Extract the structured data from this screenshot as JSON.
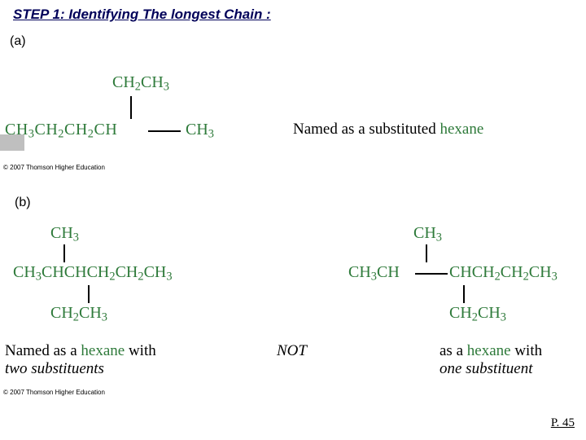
{
  "title": "STEP 1: Identifying The longest Chain :",
  "labels": {
    "a": "(a)",
    "b": "(b)"
  },
  "sectionA": {
    "branch": "CH2CH3",
    "mainLeft": "CH3CH2CH2CH",
    "mainRight": "CH3",
    "desc_prefix": "Named as a substituted ",
    "desc_hex": "hexane",
    "copyright": "© 2007 Thomson Higher Education"
  },
  "sectionB": {
    "left": {
      "top": "CH3",
      "main": "CH3CHCHCH2CH2CH3",
      "bot": "CH2CH3",
      "desc1_prefix": "Named as a ",
      "desc1_hex": "hexane",
      "desc1_suffix": " with",
      "desc2": "two substituents"
    },
    "not": "NOT",
    "right": {
      "top": "CH3",
      "mainLeft": "CH3CH",
      "mainRight": "CHCH2CH2CH3",
      "bot": "CH2CH3",
      "desc1_prefix": "as a ",
      "desc1_hex": "hexane",
      "desc1_suffix": " with",
      "desc2": "one substituent"
    },
    "copyright": "© 2007 Thomson Higher Education"
  },
  "pageNumber": "P. 45",
  "colors": {
    "title": "#000059",
    "chem": "#2e7a3a",
    "bg": "#ffffff",
    "tab": "#bfbfbf"
  }
}
